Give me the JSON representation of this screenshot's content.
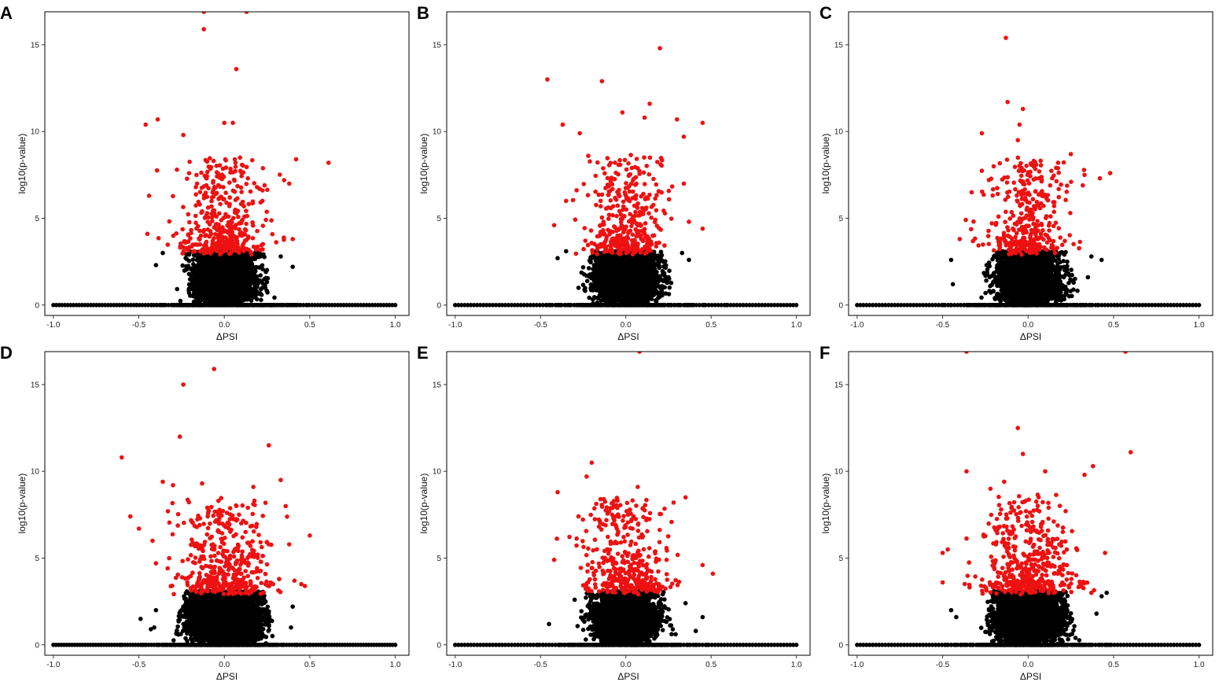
{
  "figure": {
    "panel_letters": [
      "A",
      "B",
      "C",
      "D",
      "E",
      "F"
    ]
  },
  "colors": {
    "significant": "#ee1111",
    "nonsignificant": "#000000",
    "frame": "#000000"
  },
  "chart_data": [
    {
      "type": "scatter",
      "panel": "A",
      "xlabel": "ΔPSI",
      "ylabel": "log10(p-value)",
      "xlim": [
        -1.05,
        1.08
      ],
      "ylim": [
        -0.6,
        16.9
      ],
      "xticks": [
        -1.0,
        -0.5,
        0.0,
        0.5,
        1.0
      ],
      "xtick_labels": [
        "-1.0",
        "-0.5",
        "0.0",
        "0.5",
        "1.0"
      ],
      "yticks": [
        0,
        5,
        10,
        15
      ],
      "ytick_labels": [
        "0",
        "5",
        "10",
        "15"
      ],
      "seed": 11,
      "red_count": 420,
      "black_count": 3400,
      "zero_count": 120,
      "red_spread": 0.12,
      "black_spread": 0.085,
      "red_points": [
        [
          -0.12,
          16.9
        ],
        [
          0.13,
          16.9
        ],
        [
          -0.12,
          15.9
        ],
        [
          0.07,
          13.6
        ],
        [
          -0.46,
          10.4
        ],
        [
          -0.39,
          10.7
        ],
        [
          0.0,
          10.5
        ],
        [
          0.05,
          10.5
        ],
        [
          -0.24,
          9.8
        ],
        [
          0.61,
          8.2
        ],
        [
          0.42,
          8.4
        ],
        [
          -0.44,
          6.3
        ],
        [
          -0.45,
          4.1
        ],
        [
          0.4,
          3.8
        ],
        [
          0.35,
          7.2
        ],
        [
          0.38,
          7.0
        ]
      ],
      "black_points": [
        [
          -0.4,
          2.3
        ],
        [
          0.4,
          2.2
        ],
        [
          -0.36,
          3.0
        ],
        [
          0.33,
          2.8
        ]
      ]
    },
    {
      "type": "scatter",
      "panel": "B",
      "xlabel": "ΔPSI",
      "ylabel": "log10(p-value)",
      "xlim": [
        -1.05,
        1.08
      ],
      "ylim": [
        -0.6,
        16.9
      ],
      "xticks": [
        -1.0,
        -0.5,
        0.0,
        0.5,
        1.0
      ],
      "xtick_labels": [
        "-1.0",
        "-0.5",
        "0.0",
        "0.5",
        "1.0"
      ],
      "yticks": [
        0,
        5,
        10,
        15
      ],
      "ytick_labels": [
        "0",
        "5",
        "10",
        "15"
      ],
      "seed": 23,
      "red_count": 380,
      "black_count": 3300,
      "zero_count": 110,
      "red_spread": 0.11,
      "black_spread": 0.085,
      "red_points": [
        [
          0.2,
          14.8
        ],
        [
          -0.46,
          13.0
        ],
        [
          -0.14,
          12.9
        ],
        [
          0.14,
          11.6
        ],
        [
          -0.02,
          11.1
        ],
        [
          0.11,
          10.8
        ],
        [
          0.3,
          10.7
        ],
        [
          0.45,
          10.5
        ],
        [
          -0.37,
          10.4
        ],
        [
          -0.27,
          9.9
        ],
        [
          0.34,
          9.7
        ],
        [
          -0.22,
          8.6
        ],
        [
          0.34,
          7.0
        ],
        [
          -0.42,
          4.6
        ],
        [
          0.45,
          4.4
        ],
        [
          -0.35,
          6.0
        ],
        [
          0.37,
          4.8
        ]
      ],
      "black_points": [
        [
          -0.4,
          2.7
        ],
        [
          0.37,
          2.6
        ],
        [
          -0.35,
          3.1
        ],
        [
          0.33,
          3.0
        ]
      ]
    },
    {
      "type": "scatter",
      "panel": "C",
      "xlabel": "ΔPSI",
      "ylabel": "log10(p-value)",
      "xlim": [
        -1.05,
        1.08
      ],
      "ylim": [
        -0.6,
        16.9
      ],
      "xticks": [
        -1.0,
        -0.5,
        0.0,
        0.5,
        1.0
      ],
      "xtick_labels": [
        "-1.0",
        "-0.5",
        "0.0",
        "0.5",
        "1.0"
      ],
      "yticks": [
        0,
        5,
        10,
        15
      ],
      "ytick_labels": [
        "0",
        "5",
        "10",
        "15"
      ],
      "seed": 37,
      "red_count": 360,
      "black_count": 3300,
      "zero_count": 110,
      "red_spread": 0.11,
      "black_spread": 0.085,
      "red_points": [
        [
          -0.13,
          15.4
        ],
        [
          -0.12,
          11.7
        ],
        [
          -0.03,
          11.3
        ],
        [
          -0.06,
          9.5
        ],
        [
          -0.27,
          9.9
        ],
        [
          -0.05,
          10.4
        ],
        [
          0.25,
          8.7
        ],
        [
          0.48,
          7.6
        ],
        [
          0.42,
          7.3
        ],
        [
          -0.33,
          6.5
        ],
        [
          -0.4,
          3.8
        ],
        [
          0.33,
          7.5
        ],
        [
          0.32,
          6.9
        ]
      ],
      "black_points": [
        [
          -0.45,
          2.6
        ],
        [
          -0.44,
          1.2
        ],
        [
          0.43,
          2.6
        ],
        [
          0.37,
          2.8
        ],
        [
          0.35,
          1.6
        ]
      ]
    },
    {
      "type": "scatter",
      "panel": "D",
      "xlabel": "ΔPSI",
      "ylabel": "log10(p-value)",
      "xlim": [
        -1.05,
        1.08
      ],
      "ylim": [
        -0.6,
        16.9
      ],
      "xticks": [
        -1.0,
        -0.5,
        0.0,
        0.5,
        1.0
      ],
      "xtick_labels": [
        "-1.0",
        "-0.5",
        "0.0",
        "0.5",
        "1.0"
      ],
      "yticks": [
        0,
        5,
        10,
        15
      ],
      "ytick_labels": [
        "0",
        "5",
        "10",
        "15"
      ],
      "seed": 41,
      "red_count": 430,
      "black_count": 3700,
      "zero_count": 130,
      "red_spread": 0.14,
      "black_spread": 0.1,
      "red_points": [
        [
          -0.06,
          15.9
        ],
        [
          -0.24,
          15.0
        ],
        [
          -0.26,
          12.0
        ],
        [
          0.26,
          11.5
        ],
        [
          -0.6,
          10.8
        ],
        [
          -0.36,
          9.4
        ],
        [
          -0.3,
          9.2
        ],
        [
          -0.13,
          9.3
        ],
        [
          0.33,
          9.5
        ],
        [
          0.17,
          9.1
        ],
        [
          -0.55,
          7.4
        ],
        [
          0.5,
          6.3
        ],
        [
          -0.5,
          6.7
        ],
        [
          -0.4,
          4.7
        ],
        [
          0.45,
          3.5
        ],
        [
          0.41,
          3.7
        ]
      ],
      "black_points": [
        [
          -0.49,
          1.5
        ],
        [
          -0.4,
          2.0
        ],
        [
          -0.41,
          1.0
        ],
        [
          0.4,
          2.2
        ],
        [
          0.39,
          1.0
        ],
        [
          -0.43,
          0.9
        ]
      ]
    },
    {
      "type": "scatter",
      "panel": "E",
      "xlabel": "ΔPSI",
      "ylabel": "log10(p-value)",
      "xlim": [
        -1.05,
        1.08
      ],
      "ylim": [
        -0.6,
        16.9
      ],
      "xticks": [
        -1.0,
        -0.5,
        0.0,
        0.5,
        1.0
      ],
      "xtick_labels": [
        "-1.0",
        "-0.5",
        "0.0",
        "0.5",
        "1.0"
      ],
      "yticks": [
        0,
        5,
        10,
        15
      ],
      "ytick_labels": [
        "0",
        "5",
        "10",
        "15"
      ],
      "seed": 53,
      "red_count": 400,
      "black_count": 3400,
      "zero_count": 110,
      "red_spread": 0.12,
      "black_spread": 0.085,
      "red_points": [
        [
          0.08,
          16.9
        ],
        [
          -0.2,
          10.5
        ],
        [
          -0.23,
          9.7
        ],
        [
          0.07,
          9.1
        ],
        [
          -0.4,
          8.8
        ],
        [
          0.35,
          8.5
        ],
        [
          0.28,
          8.2
        ],
        [
          0.51,
          4.1
        ],
        [
          -0.42,
          4.9
        ],
        [
          0.45,
          4.6
        ]
      ],
      "black_points": [
        [
          -0.45,
          1.2
        ],
        [
          0.45,
          1.6
        ],
        [
          0.41,
          0.8
        ],
        [
          -0.3,
          2.6
        ],
        [
          0.35,
          2.4
        ]
      ]
    },
    {
      "type": "scatter",
      "panel": "F",
      "xlabel": "ΔPSI",
      "ylabel": "log10(p-value)",
      "xlim": [
        -1.05,
        1.08
      ],
      "ylim": [
        -0.6,
        16.9
      ],
      "xticks": [
        -1.0,
        -0.5,
        0.0,
        0.5,
        1.0
      ],
      "xtick_labels": [
        "-1.0",
        "-0.5",
        "0.0",
        "0.5",
        "1.0"
      ],
      "yticks": [
        0,
        5,
        10,
        15
      ],
      "ytick_labels": [
        "0",
        "5",
        "10",
        "15"
      ],
      "seed": 67,
      "red_count": 460,
      "black_count": 3500,
      "zero_count": 110,
      "red_spread": 0.14,
      "black_spread": 0.09,
      "red_points": [
        [
          -0.36,
          16.9
        ],
        [
          0.57,
          16.9
        ],
        [
          -0.06,
          12.5
        ],
        [
          0.6,
          11.1
        ],
        [
          -0.03,
          11.0
        ],
        [
          -0.36,
          10.0
        ],
        [
          0.1,
          10.0
        ],
        [
          0.38,
          10.3
        ],
        [
          0.33,
          9.8
        ],
        [
          -0.22,
          9.0
        ],
        [
          -0.14,
          9.4
        ],
        [
          -0.5,
          5.3
        ],
        [
          -0.47,
          5.5
        ],
        [
          0.45,
          5.3
        ],
        [
          0.37,
          3.0
        ],
        [
          -0.5,
          3.6
        ]
      ],
      "black_points": [
        [
          -0.45,
          2.0
        ],
        [
          -0.42,
          1.6
        ],
        [
          0.43,
          2.8
        ],
        [
          0.46,
          3.0
        ],
        [
          0.4,
          1.8
        ]
      ]
    }
  ]
}
